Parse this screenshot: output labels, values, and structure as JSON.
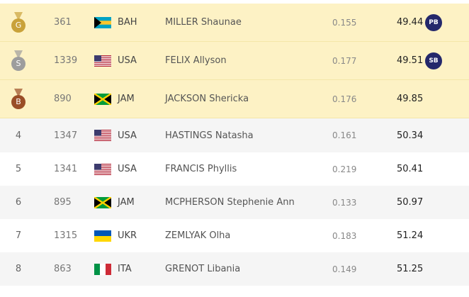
{
  "table": {
    "rows": [
      {
        "rank": "G",
        "bib": "361",
        "country": "BAH",
        "name": "MILLER Shaunae",
        "reaction": "0.155",
        "result": "49.44",
        "badge": "PB"
      },
      {
        "rank": "S",
        "bib": "1339",
        "country": "USA",
        "name": "FELIX Allyson",
        "reaction": "0.177",
        "result": "49.51",
        "badge": "SB"
      },
      {
        "rank": "B",
        "bib": "890",
        "country": "JAM",
        "name": "JACKSON Shericka",
        "reaction": "0.176",
        "result": "49.85"
      },
      {
        "rank": "4",
        "bib": "1347",
        "country": "USA",
        "name": "HASTINGS Natasha",
        "reaction": "0.161",
        "result": "50.34"
      },
      {
        "rank": "5",
        "bib": "1341",
        "country": "USA",
        "name": "FRANCIS Phyllis",
        "reaction": "0.219",
        "result": "50.41"
      },
      {
        "rank": "6",
        "bib": "895",
        "country": "JAM",
        "name": "MCPHERSON Stephenie Ann",
        "reaction": "0.133",
        "result": "50.97"
      },
      {
        "rank": "7",
        "bib": "1315",
        "country": "UKR",
        "name": "ZEMLYAK Olha",
        "reaction": "0.183",
        "result": "51.24"
      },
      {
        "rank": "8",
        "bib": "863",
        "country": "ITA",
        "name": "GRENOT Libania",
        "reaction": "0.149",
        "result": "51.25"
      }
    ]
  }
}
